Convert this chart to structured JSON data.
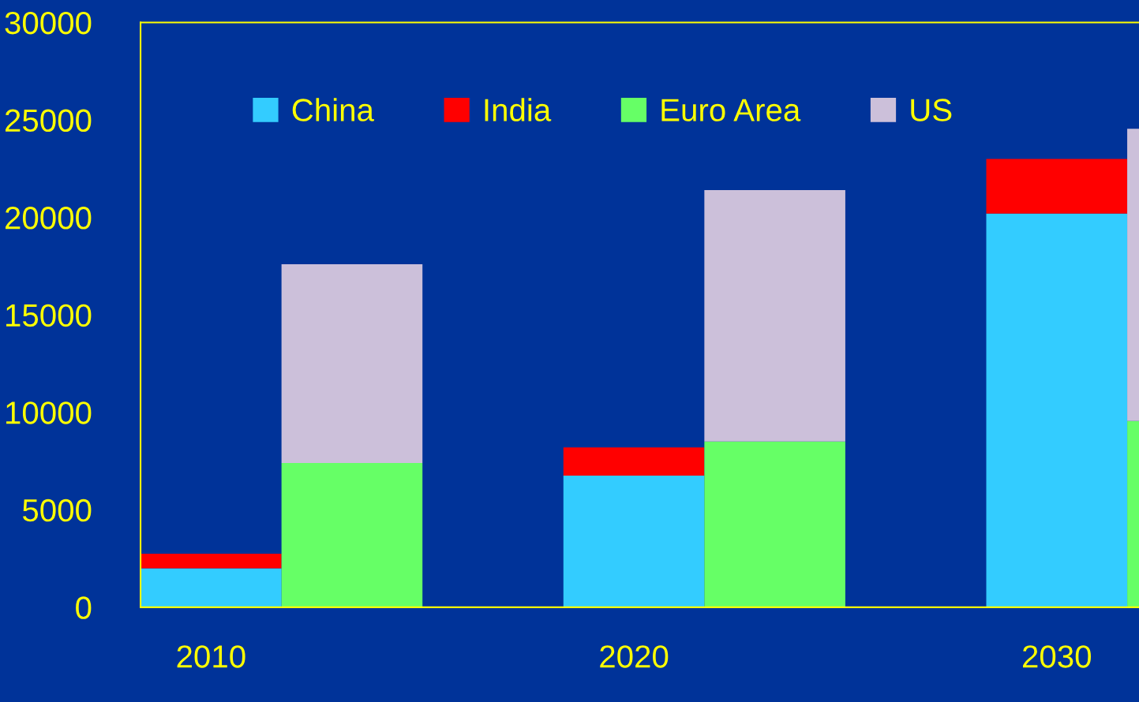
{
  "chart_data": {
    "type": "bar",
    "stacked": true,
    "categories": [
      "2010",
      null,
      null,
      "2020",
      null,
      null,
      "2030",
      null
    ],
    "series": [
      {
        "name": "China",
        "color": "#33ccff",
        "values": [
          2000,
          null,
          null,
          6750,
          null,
          null,
          20200,
          null
        ]
      },
      {
        "name": "India",
        "color": "#ff0000",
        "values": [
          750,
          null,
          null,
          1450,
          null,
          null,
          2800,
          null
        ]
      },
      {
        "name": "Euro Area",
        "color": "#66ff66",
        "values": [
          null,
          7400,
          null,
          null,
          8500,
          null,
          null,
          9550
        ]
      },
      {
        "name": "US",
        "color": "#ccc0da",
        "values": [
          null,
          10200,
          null,
          null,
          12900,
          null,
          null,
          15000
        ]
      }
    ],
    "ylim": [
      0,
      30000
    ],
    "yticks": [
      0,
      5000,
      10000,
      15000,
      20000,
      25000,
      30000
    ],
    "grid": false,
    "legend": "top"
  }
}
